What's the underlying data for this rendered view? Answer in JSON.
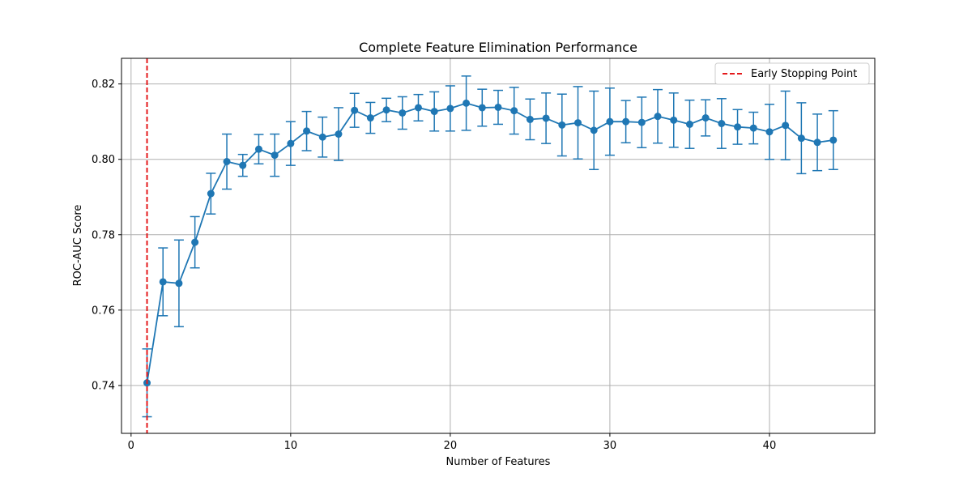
{
  "chart_data": {
    "type": "line",
    "title": "Complete Feature Elimination Performance",
    "xlabel": "Number of Features",
    "ylabel": "ROC-AUC Score",
    "xlim": [
      -0.6,
      46.6
    ],
    "ylim": [
      0.7273,
      0.8268
    ],
    "xticks": [
      0,
      10,
      20,
      30,
      40
    ],
    "yticks": [
      0.74,
      0.76,
      0.78,
      0.8,
      0.82
    ],
    "ytick_labels": [
      "0.74",
      "0.76",
      "0.78",
      "0.80",
      "0.82"
    ],
    "grid": true,
    "legend_position": "top-right",
    "series": [
      {
        "type": "errorbar-line",
        "color": "#1f77b4",
        "x": [
          1,
          2,
          3,
          4,
          5,
          6,
          7,
          8,
          9,
          10,
          11,
          12,
          13,
          14,
          15,
          16,
          17,
          18,
          19,
          20,
          21,
          22,
          23,
          24,
          25,
          26,
          27,
          28,
          29,
          30,
          31,
          32,
          33,
          34,
          35,
          36,
          37,
          38,
          39,
          40,
          41,
          42,
          43,
          44
        ],
        "y": [
          0.7407,
          0.7675,
          0.7671,
          0.778,
          0.7909,
          0.7994,
          0.7984,
          0.8027,
          0.8011,
          0.8042,
          0.8075,
          0.8059,
          0.8067,
          0.813,
          0.811,
          0.8131,
          0.8123,
          0.8137,
          0.8127,
          0.8135,
          0.8149,
          0.8137,
          0.8138,
          0.8129,
          0.8106,
          0.8109,
          0.8091,
          0.8097,
          0.8077,
          0.81,
          0.81,
          0.8098,
          0.8114,
          0.8104,
          0.8093,
          0.811,
          0.8095,
          0.8086,
          0.8083,
          0.8073,
          0.809,
          0.8056,
          0.8045,
          0.8051
        ],
        "err": [
          0.009,
          0.009,
          0.0115,
          0.0068,
          0.0054,
          0.0073,
          0.0029,
          0.0039,
          0.0056,
          0.0058,
          0.0052,
          0.0053,
          0.007,
          0.0045,
          0.0041,
          0.0031,
          0.0043,
          0.0035,
          0.0052,
          0.006,
          0.0072,
          0.0049,
          0.0045,
          0.0062,
          0.0054,
          0.0067,
          0.0082,
          0.0096,
          0.0104,
          0.0089,
          0.0056,
          0.0067,
          0.0071,
          0.0072,
          0.0064,
          0.0048,
          0.0066,
          0.0046,
          0.0042,
          0.0073,
          0.0091,
          0.0094,
          0.0075,
          0.0078
        ]
      }
    ],
    "vline": {
      "x": 1,
      "color": "#e41a1c",
      "label": "Early Stopping Point"
    }
  }
}
